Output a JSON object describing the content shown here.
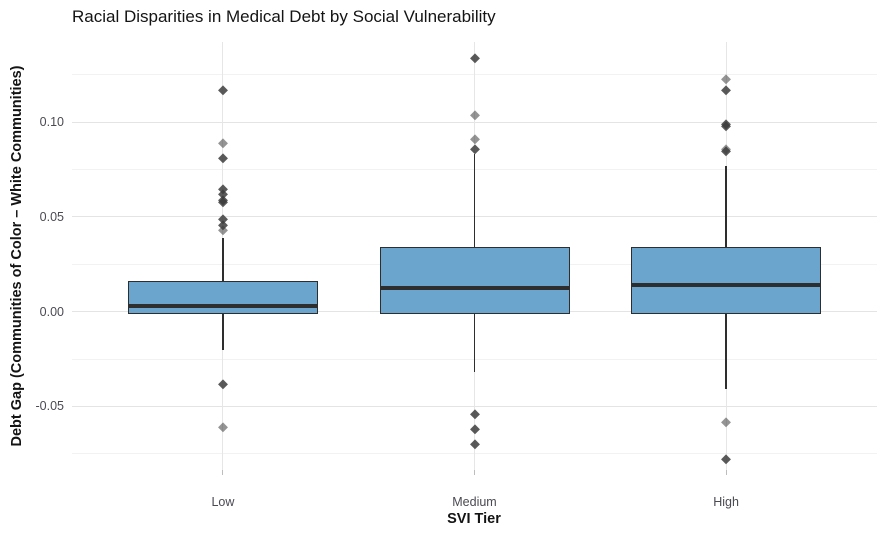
{
  "colors": {
    "background": "#ffffff",
    "box_fill": "#6ba5ce",
    "box_border": "#2e2e2e",
    "median_line": "#2e2e2e",
    "grid_major": "#e4e4e4",
    "grid_minor": "#f2f2f2",
    "tick_text": "#4a4a52",
    "title_text": "#141414",
    "outlier_point": "#3c3c3c"
  },
  "chart_data": {
    "type": "boxplot",
    "title": "Racial Disparities in Medical Debt by Social Vulnerability",
    "xlabel": "SVI Tier",
    "ylabel": "Debt Gap (Communities of Color – White Communities)",
    "categories": [
      "Low",
      "Medium",
      "High"
    ],
    "ylim": [
      -0.0836,
      0.1424
    ],
    "y_major_ticks": [
      0.1,
      0.05,
      0.0,
      -0.05
    ],
    "y_tick_labels": [
      "0.10",
      "0.05",
      "0.00",
      "-0.05"
    ],
    "y_minor_ticks": [
      0.125,
      0.075,
      0.025,
      -0.025,
      -0.075
    ],
    "grid": true,
    "legend": false,
    "series": [
      {
        "category": "Low",
        "q1": -0.001,
        "median": 0.003,
        "q3": 0.016,
        "whisker_low": -0.02,
        "whisker_high": 0.039,
        "outliers": [
          {
            "v": 0.117,
            "light": false
          },
          {
            "v": 0.089,
            "light": true
          },
          {
            "v": 0.081,
            "light": false
          },
          {
            "v": 0.065,
            "light": false
          },
          {
            "v": 0.062,
            "light": false
          },
          {
            "v": 0.059,
            "light": false
          },
          {
            "v": 0.058,
            "light": false
          },
          {
            "v": 0.049,
            "light": false
          },
          {
            "v": 0.046,
            "light": false
          },
          {
            "v": 0.043,
            "light": true
          },
          {
            "v": -0.038,
            "light": false
          },
          {
            "v": -0.061,
            "light": true
          }
        ]
      },
      {
        "category": "Medium",
        "q1": -0.001,
        "median": 0.0125,
        "q3": 0.034,
        "whisker_low": -0.032,
        "whisker_high": 0.083,
        "outliers": [
          {
            "v": 0.134,
            "light": false
          },
          {
            "v": 0.104,
            "light": true
          },
          {
            "v": 0.091,
            "light": true
          },
          {
            "v": 0.086,
            "light": false
          },
          {
            "v": -0.054,
            "light": false
          },
          {
            "v": -0.062,
            "light": false
          },
          {
            "v": -0.07,
            "light": false
          }
        ]
      },
      {
        "category": "High",
        "q1": -0.001,
        "median": 0.014,
        "q3": 0.034,
        "whisker_low": -0.041,
        "whisker_high": 0.077,
        "outliers": [
          {
            "v": 0.123,
            "light": true
          },
          {
            "v": 0.117,
            "light": false
          },
          {
            "v": 0.099,
            "light": false
          },
          {
            "v": 0.098,
            "light": false
          },
          {
            "v": 0.086,
            "light": true
          },
          {
            "v": 0.085,
            "light": false
          },
          {
            "v": -0.058,
            "light": true
          },
          {
            "v": -0.078,
            "light": false
          }
        ]
      }
    ]
  }
}
